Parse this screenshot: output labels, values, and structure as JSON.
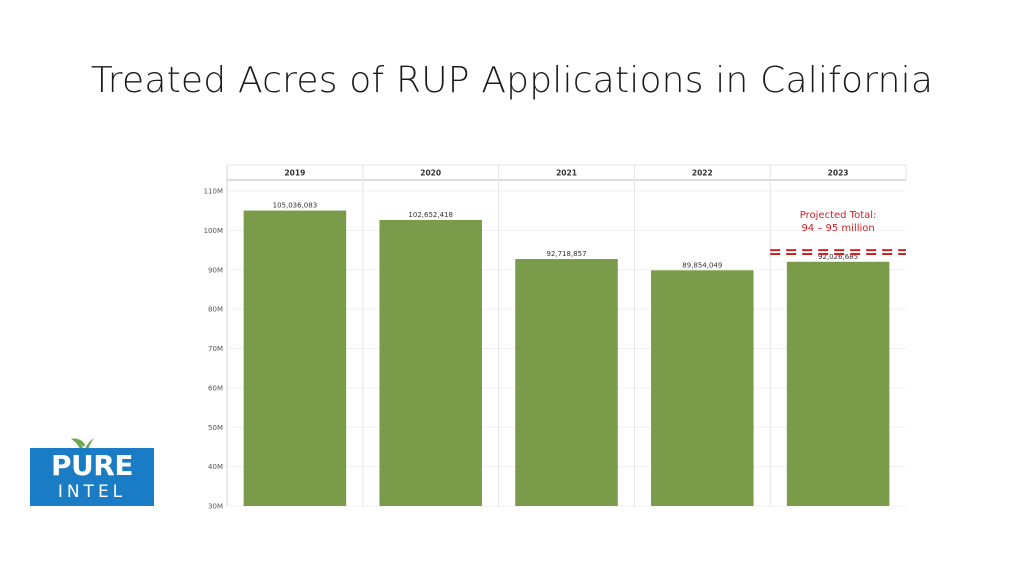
{
  "slide": {
    "title": "Treated Acres of RUP Applications in California"
  },
  "logo": {
    "word1": "PURE",
    "word2": "INTEL",
    "colors": {
      "box": "#1a7cc4",
      "sprout": "#6aa84f"
    }
  },
  "chart_data": {
    "type": "bar",
    "categories": [
      "2019",
      "2020",
      "2021",
      "2022",
      "2023"
    ],
    "values": [
      105036083,
      102652418,
      92718857,
      89854049,
      92026685
    ],
    "data_labels": [
      "105,036,083",
      "102,652,418",
      "92,718,857",
      "89,854,049",
      "92,026,685"
    ],
    "ylim": [
      30000000,
      110000000
    ],
    "yticks": [
      {
        "value": 110000000,
        "label": "110M"
      },
      {
        "value": 100000000,
        "label": "100M"
      },
      {
        "value": 90000000,
        "label": "90M"
      },
      {
        "value": 80000000,
        "label": "80M"
      },
      {
        "value": 70000000,
        "label": "70M"
      },
      {
        "value": 60000000,
        "label": "60M"
      },
      {
        "value": 50000000,
        "label": "50M"
      },
      {
        "value": 40000000,
        "label": "40M"
      },
      {
        "value": 30000000,
        "label": "30M"
      }
    ],
    "bar_color": "#7a9c4a",
    "grid": true,
    "annotation": {
      "category": "2023",
      "lines": [
        "Projected Total:",
        "94 – 95 million"
      ],
      "range": [
        94000000,
        95000000
      ],
      "color": "#d42020",
      "style": "dashed"
    }
  }
}
